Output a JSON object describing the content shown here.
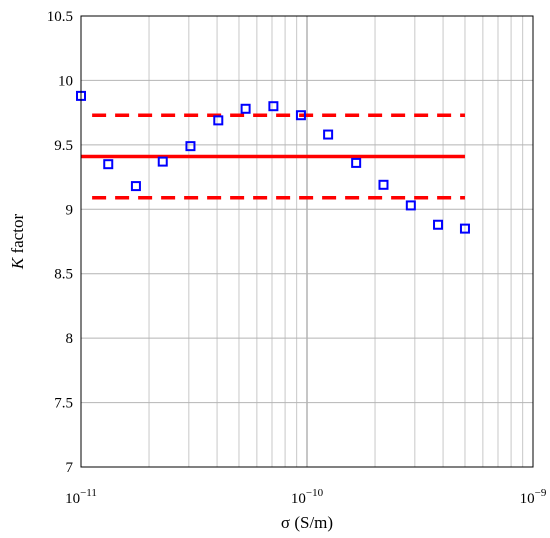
{
  "chart_data": {
    "type": "scatter",
    "x_scale": "log",
    "xlim": [
      1e-11,
      1e-09
    ],
    "ylim": [
      7,
      10.5
    ],
    "grid": true,
    "xlabel": "σ (S/m)",
    "ylabel_italic": "K",
    "ylabel_rest": " factor",
    "x_tick_labels": [
      {
        "base": "10",
        "exp": "−11"
      },
      {
        "base": "10",
        "exp": "−10"
      },
      {
        "base": "10",
        "exp": "−9"
      }
    ],
    "y_ticks": [
      7,
      7.5,
      8,
      8.5,
      9,
      9.5,
      10,
      10.5
    ],
    "y_tick_labels": [
      "7",
      "7.5",
      "8",
      "8.5",
      "9",
      "9.5",
      "10",
      "10.5"
    ],
    "points": {
      "x": [
        1e-11,
        1.32e-11,
        1.75e-11,
        2.3e-11,
        3.05e-11,
        4.05e-11,
        5.35e-11,
        7.1e-11,
        9.4e-11,
        1.24e-10,
        1.65e-10,
        2.18e-10,
        2.88e-10,
        3.8e-10,
        5e-10
      ],
      "y": [
        9.88,
        9.35,
        9.18,
        9.37,
        9.49,
        9.69,
        9.78,
        9.8,
        9.73,
        9.58,
        9.36,
        9.19,
        9.03,
        8.88,
        8.85
      ],
      "color": "#0000ff",
      "marker": "square-open"
    },
    "reference_lines": [
      {
        "kind": "mean",
        "y": 9.41,
        "x_range": [
          1e-11,
          5e-10
        ],
        "color": "#ff0000",
        "style": "solid"
      },
      {
        "kind": "upper-bound",
        "y": 9.73,
        "x_range": [
          1.12e-11,
          5e-10
        ],
        "color": "#ff0000",
        "style": "dashed"
      },
      {
        "kind": "lower-bound",
        "y": 9.09,
        "x_range": [
          1.12e-11,
          5e-10
        ],
        "color": "#ff0000",
        "style": "dashed"
      }
    ]
  }
}
